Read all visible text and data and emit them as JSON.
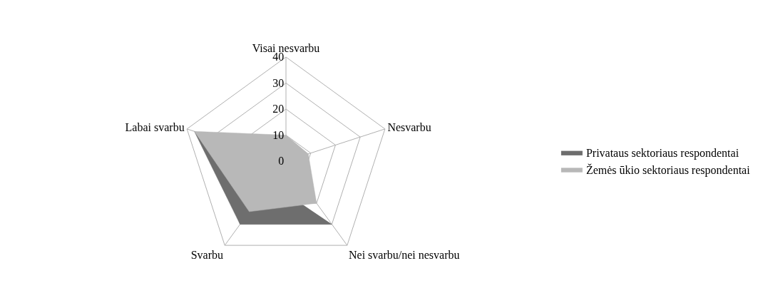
{
  "chart_data": {
    "type": "radar",
    "categories": [
      "Visai nesvarbu",
      "Nesvarbu",
      "Nei svarbu/nei nesvarbu",
      "Svarbu",
      "Labai svarbu"
    ],
    "series": [
      {
        "name": "Privataus sektoriaus respondentai",
        "color": "#6e6e6e",
        "values": [
          null,
          null,
          30,
          30,
          37
        ]
      },
      {
        "name": "Žemės ūkio sektoriaus respondentai",
        "color": "#b8b8b8",
        "values": [
          10,
          9,
          20,
          24,
          37
        ]
      }
    ],
    "ylim": [
      0,
      40
    ],
    "yticks": [
      0,
      10,
      20,
      30,
      40
    ],
    "grid": true,
    "legend": "right"
  }
}
